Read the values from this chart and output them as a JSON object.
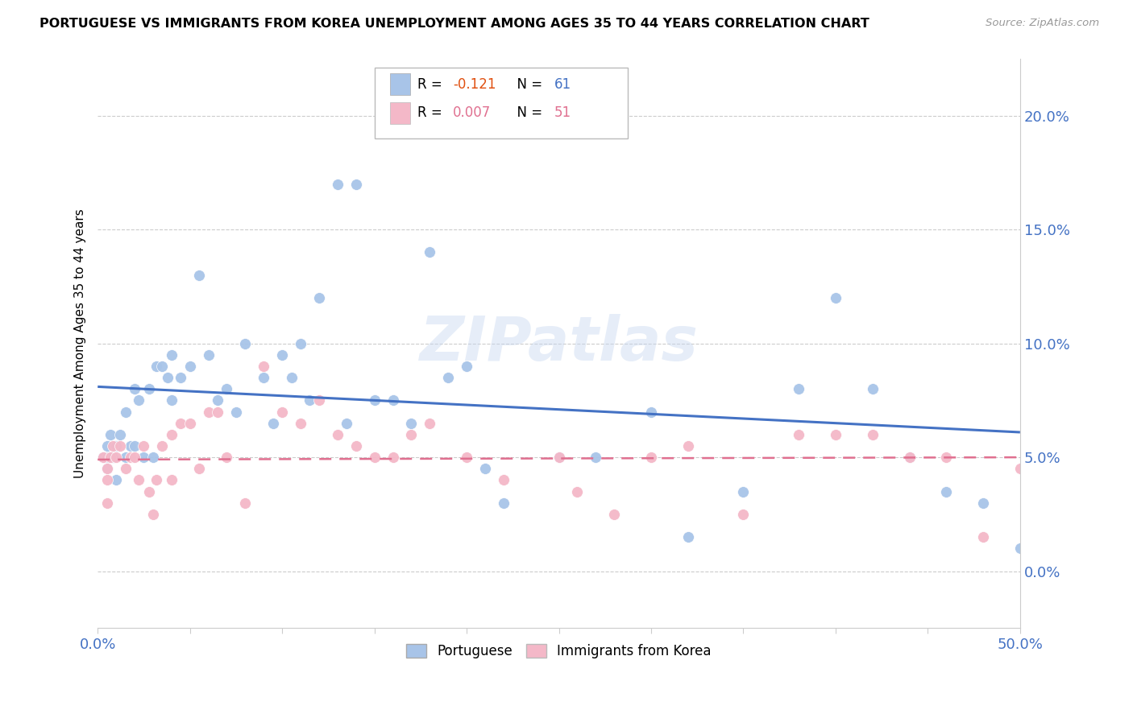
{
  "title": "PORTUGUESE VS IMMIGRANTS FROM KOREA UNEMPLOYMENT AMONG AGES 35 TO 44 YEARS CORRELATION CHART",
  "source": "Source: ZipAtlas.com",
  "ylabel": "Unemployment Among Ages 35 to 44 years",
  "xlim": [
    0.0,
    0.5
  ],
  "ylim": [
    -0.025,
    0.225
  ],
  "xticks": [
    0.0,
    0.05,
    0.1,
    0.15,
    0.2,
    0.25,
    0.3,
    0.35,
    0.4,
    0.45,
    0.5
  ],
  "yticks_right": [
    0.0,
    0.05,
    0.1,
    0.15,
    0.2
  ],
  "ytick_labels_right": [
    "0.0%",
    "5.0%",
    "10.0%",
    "15.0%",
    "20.0%"
  ],
  "blue_color": "#a8c4e8",
  "pink_color": "#f4b8c8",
  "blue_line_color": "#4472c4",
  "pink_line_color": "#e07090",
  "R_blue": -0.121,
  "N_blue": 61,
  "R_pink": 0.007,
  "N_pink": 51,
  "watermark": "ZIPatlas",
  "blue_scatter_x": [
    0.003,
    0.005,
    0.005,
    0.007,
    0.008,
    0.01,
    0.01,
    0.012,
    0.015,
    0.015,
    0.018,
    0.02,
    0.022,
    0.025,
    0.028,
    0.03,
    0.032,
    0.035,
    0.038,
    0.04,
    0.04,
    0.045,
    0.05,
    0.055,
    0.06,
    0.065,
    0.07,
    0.075,
    0.08,
    0.09,
    0.095,
    0.1,
    0.105,
    0.11,
    0.115,
    0.12,
    0.13,
    0.14,
    0.15,
    0.16,
    0.17,
    0.18,
    0.19,
    0.2,
    0.21,
    0.22,
    0.25,
    0.27,
    0.3,
    0.32,
    0.35,
    0.38,
    0.4,
    0.42,
    0.44,
    0.46,
    0.48,
    0.5,
    0.005,
    0.02,
    0.135
  ],
  "blue_scatter_y": [
    0.05,
    0.045,
    0.055,
    0.06,
    0.05,
    0.04,
    0.055,
    0.06,
    0.05,
    0.07,
    0.055,
    0.055,
    0.075,
    0.05,
    0.08,
    0.05,
    0.09,
    0.09,
    0.085,
    0.075,
    0.095,
    0.085,
    0.09,
    0.13,
    0.095,
    0.075,
    0.08,
    0.07,
    0.1,
    0.085,
    0.065,
    0.095,
    0.085,
    0.1,
    0.075,
    0.12,
    0.17,
    0.17,
    0.075,
    0.075,
    0.065,
    0.14,
    0.085,
    0.09,
    0.045,
    0.03,
    0.05,
    0.05,
    0.07,
    0.015,
    0.035,
    0.08,
    0.12,
    0.08,
    0.05,
    0.035,
    0.03,
    0.01,
    0.05,
    0.08,
    0.065
  ],
  "pink_scatter_x": [
    0.003,
    0.005,
    0.005,
    0.007,
    0.008,
    0.01,
    0.012,
    0.015,
    0.018,
    0.02,
    0.022,
    0.025,
    0.028,
    0.03,
    0.032,
    0.035,
    0.04,
    0.04,
    0.045,
    0.05,
    0.055,
    0.06,
    0.065,
    0.07,
    0.08,
    0.09,
    0.1,
    0.11,
    0.12,
    0.13,
    0.14,
    0.15,
    0.16,
    0.17,
    0.18,
    0.2,
    0.22,
    0.25,
    0.26,
    0.28,
    0.3,
    0.32,
    0.35,
    0.38,
    0.4,
    0.42,
    0.44,
    0.46,
    0.48,
    0.5,
    0.005
  ],
  "pink_scatter_y": [
    0.05,
    0.04,
    0.045,
    0.05,
    0.055,
    0.05,
    0.055,
    0.045,
    0.05,
    0.05,
    0.04,
    0.055,
    0.035,
    0.025,
    0.04,
    0.055,
    0.06,
    0.04,
    0.065,
    0.065,
    0.045,
    0.07,
    0.07,
    0.05,
    0.03,
    0.09,
    0.07,
    0.065,
    0.075,
    0.06,
    0.055,
    0.05,
    0.05,
    0.06,
    0.065,
    0.05,
    0.04,
    0.05,
    0.035,
    0.025,
    0.05,
    0.055,
    0.025,
    0.06,
    0.06,
    0.06,
    0.05,
    0.05,
    0.015,
    0.045,
    0.03
  ],
  "blue_line_x0": 0.0,
  "blue_line_y0": 0.081,
  "blue_line_x1": 0.5,
  "blue_line_y1": 0.061,
  "pink_line_x0": 0.0,
  "pink_line_y0": 0.049,
  "pink_line_x1": 0.5,
  "pink_line_y1": 0.05
}
